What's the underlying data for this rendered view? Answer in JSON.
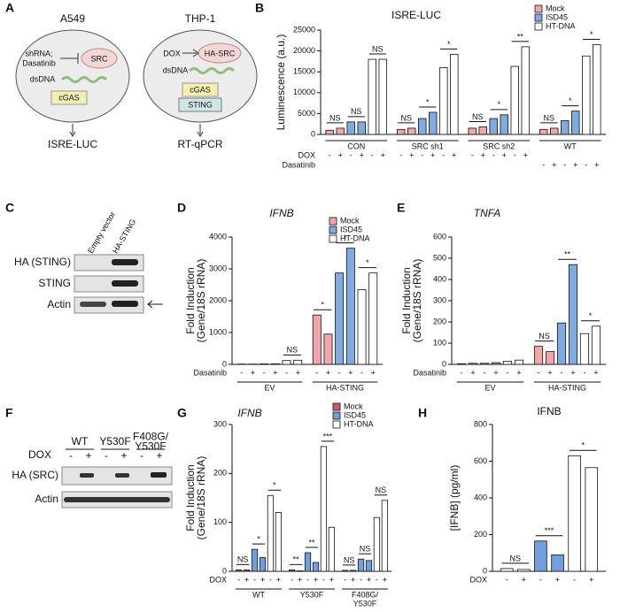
{
  "chart_data": [
    {
      "panel": "B",
      "type": "bar",
      "title": "ISRE-LUC",
      "title_italic": false,
      "ylabel": [
        "Luminescence (a.u.)"
      ],
      "ylim": [
        0,
        25000
      ],
      "yticks": [
        0,
        5000,
        10000,
        15000,
        20000,
        25000
      ],
      "legend": true,
      "group_row": "top",
      "groups": [
        [
          "CON"
        ],
        [
          "SRC sh1"
        ],
        [
          "SRC sh2"
        ],
        [
          "WT"
        ]
      ],
      "series": [
        {
          "name": "Mock",
          "color": "#f2a6ab",
          "values": [
            1000,
            1500,
            1200,
            1500,
            1500,
            1800,
            1200,
            1500
          ]
        },
        {
          "name": "ISD45",
          "color": "#7fabe3",
          "values": [
            3000,
            3000,
            3800,
            5300,
            3800,
            4700,
            3300,
            5600
          ]
        },
        {
          "name": "HT-DNA",
          "color": "#ffffff",
          "values": [
            18000,
            18000,
            16000,
            19200,
            16300,
            21000,
            18800,
            21500
          ]
        }
      ],
      "annotations": [
        "NS",
        "NS",
        "NS",
        "NS",
        "*",
        "*",
        "NS",
        "*",
        "**",
        "NS",
        "*",
        "*"
      ],
      "rows": [
        {
          "label": "DOX",
          "signs": [
            "-",
            "+",
            "-",
            "+",
            "-",
            "+",
            "-",
            "+",
            "-",
            "+",
            "-",
            "+",
            "-",
            "+",
            "-",
            "+",
            "-",
            "+",
            null,
            null,
            null,
            null,
            null,
            null
          ]
        },
        {
          "label": "Dasatinib",
          "signs": [
            null,
            null,
            null,
            null,
            null,
            null,
            null,
            null,
            null,
            null,
            null,
            null,
            null,
            null,
            null,
            null,
            null,
            null,
            "-",
            "+",
            "-",
            "+",
            "-",
            "+"
          ]
        }
      ]
    },
    {
      "panel": "D",
      "type": "bar",
      "title": "IFNB",
      "title_italic": true,
      "ylabel": [
        "Fold Induction",
        "(Gene/18S rRNA)"
      ],
      "ylim": [
        0,
        4000
      ],
      "yticks": [
        0,
        1000,
        2000,
        3000,
        4000
      ],
      "legend": true,
      "group_row": "bottom",
      "groups": [
        [
          "EV"
        ],
        [
          "HA-STING"
        ]
      ],
      "series": [
        {
          "name": "Mock",
          "color": "#f2a6ab",
          "values": [
            10,
            10,
            1550,
            950
          ]
        },
        {
          "name": "ISD45",
          "color": "#7fabe3",
          "values": [
            15,
            15,
            2870,
            3650
          ]
        },
        {
          "name": "HT-DNA",
          "color": "#ffffff",
          "values": [
            120,
            130,
            2350,
            2870
          ]
        }
      ],
      "annotations": [
        null,
        null,
        "NS",
        "*",
        "*",
        "*"
      ],
      "rows": [
        {
          "label": "Dasatinib",
          "signs": [
            "-",
            "+",
            "-",
            "+",
            "-",
            "+",
            "-",
            "+",
            "-",
            "+",
            "-",
            "+"
          ]
        }
      ]
    },
    {
      "panel": "E",
      "type": "bar",
      "title": "TNFA",
      "title_italic": true,
      "ylabel": [
        "Fold Induction",
        "(Gene/18S rRNA)"
      ],
      "ylim": [
        0,
        600
      ],
      "yticks": [
        0,
        100,
        200,
        300,
        400,
        500,
        600
      ],
      "legend": false,
      "group_row": "bottom",
      "groups": [
        [
          "EV"
        ],
        [
          "HA-STING"
        ]
      ],
      "series": [
        {
          "color": "#f2a6ab",
          "values": [
            3,
            5,
            85,
            60
          ]
        },
        {
          "color": "#7fabe3",
          "values": [
            5,
            8,
            195,
            470
          ]
        },
        {
          "color": "#ffffff",
          "values": [
            15,
            20,
            145,
            180
          ]
        }
      ],
      "annotations": [
        null,
        null,
        null,
        "NS",
        "**",
        "*"
      ],
      "rows": [
        {
          "label": "Dasatinib",
          "signs": [
            "-",
            "+",
            "-",
            "+",
            "-",
            "+",
            "-",
            "+",
            "-",
            "+",
            "-",
            "+"
          ]
        }
      ]
    },
    {
      "panel": "G",
      "type": "bar",
      "title": "IFNB",
      "title_italic": true,
      "ylabel": [
        "Fold Induction",
        "(Gene/18S rRNA)"
      ],
      "ylim": [
        0,
        300
      ],
      "yticks": [
        0,
        100,
        200,
        300
      ],
      "legend": true,
      "group_row": "bottom",
      "groups": [
        [
          "WT"
        ],
        [
          "Y530F"
        ],
        [
          "F408G/",
          "Y530F"
        ]
      ],
      "series": [
        {
          "name": "Mock",
          "color": "#d4566f",
          "values": [
            3,
            3,
            3,
            1,
            2,
            2
          ]
        },
        {
          "name": "ISD45",
          "color": "#6f9fe0",
          "values": [
            45,
            28,
            38,
            18,
            25,
            22
          ]
        },
        {
          "name": "HT-DNA",
          "color": "#ffffff",
          "values": [
            155,
            120,
            255,
            90,
            110,
            145
          ]
        }
      ],
      "annotations": [
        "NS",
        "*",
        "*",
        "**",
        "**",
        "***",
        "NS",
        "NS",
        "NS"
      ],
      "rows": [
        {
          "label": "DOX",
          "signs": [
            "-",
            "+",
            "-",
            "+",
            "-",
            "+",
            "-",
            "+",
            "-",
            "+",
            "-",
            "+",
            "-",
            "+",
            "-",
            "+",
            "-",
            "+"
          ]
        }
      ]
    },
    {
      "panel": "H",
      "type": "bar",
      "title": "IFNB",
      "title_italic": false,
      "ylabel": [
        "[IFNB] (pg/ml)"
      ],
      "ylim": [
        0,
        800
      ],
      "yticks": [
        0,
        200,
        400,
        600,
        800
      ],
      "legend": false,
      "group_row": "bottom",
      "series": [
        {
          "color": "#ffffff",
          "values": [
            15,
            10
          ]
        },
        {
          "color": "#6f9fe0",
          "values": [
            165,
            90
          ]
        },
        {
          "color": "#ffffff",
          "values": [
            630,
            565
          ]
        }
      ],
      "annotations": [
        "NS",
        "***",
        "*"
      ],
      "rows": [
        {
          "label": "DOX",
          "signs": [
            "-",
            "+",
            "-",
            "+",
            "-",
            "+"
          ]
        }
      ]
    }
  ],
  "diagram": {
    "panel": "A",
    "left": {
      "title": "A549",
      "inhibitor": [
        "shRNA;",
        "Dasatinib"
      ],
      "target": "SRC",
      "dna": "dsDNA",
      "sensor": "cGAS",
      "readout": "ISRE-LUC"
    },
    "right": {
      "title": "THP-1",
      "inducer": "DOX",
      "target": "HA-SRC",
      "dna": "dsDNA",
      "sensor": "cGAS",
      "adaptor": "STING",
      "readout": "RT-qPCR"
    }
  },
  "blot_c": {
    "panel": "C",
    "lanes": [
      "Empty vector",
      "HA-STING"
    ],
    "rows": [
      "HA (STING)",
      "STING",
      "Actin"
    ]
  },
  "blot_f": {
    "panel": "F",
    "groups": [
      [
        "WT"
      ],
      [
        "Y530F"
      ],
      [
        "F408G/",
        "Y530F"
      ]
    ],
    "row_label": "DOX",
    "signs": [
      "-",
      "+",
      "-",
      "+",
      "-",
      "+"
    ],
    "rows": [
      "HA (SRC)",
      "Actin"
    ]
  }
}
